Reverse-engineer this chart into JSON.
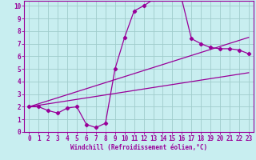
{
  "bg_color": "#c8eef0",
  "line_color": "#990099",
  "grid_color": "#a0cccc",
  "xlabel": "Windchill (Refroidissement éolien,°C)",
  "xlim": [
    -0.5,
    23.5
  ],
  "ylim": [
    0,
    10.4
  ],
  "xticks": [
    0,
    1,
    2,
    3,
    4,
    5,
    6,
    7,
    8,
    9,
    10,
    11,
    12,
    13,
    14,
    15,
    16,
    17,
    18,
    19,
    20,
    21,
    22,
    23
  ],
  "yticks": [
    0,
    1,
    2,
    3,
    4,
    5,
    6,
    7,
    8,
    9,
    10
  ],
  "line1_x": [
    0,
    1,
    2,
    3,
    4,
    5,
    6,
    7,
    8,
    9,
    10,
    11,
    12,
    13,
    14,
    15,
    16,
    17,
    18,
    19,
    20,
    21,
    22,
    23
  ],
  "line1_y": [
    2.0,
    2.0,
    1.7,
    1.5,
    1.9,
    2.0,
    0.6,
    0.35,
    0.7,
    5.0,
    7.5,
    9.6,
    10.0,
    10.5,
    10.6,
    10.6,
    10.5,
    7.4,
    7.0,
    6.7,
    6.6,
    6.6,
    6.5,
    6.2
  ],
  "line2_x": [
    0,
    23
  ],
  "line2_y": [
    2.0,
    4.7
  ],
  "line3_x": [
    0,
    23
  ],
  "line3_y": [
    2.0,
    7.5
  ],
  "marker": "D",
  "markersize": 2.2,
  "linewidth": 0.9,
  "tick_fontsize": 5.5,
  "xlabel_fontsize": 5.5
}
